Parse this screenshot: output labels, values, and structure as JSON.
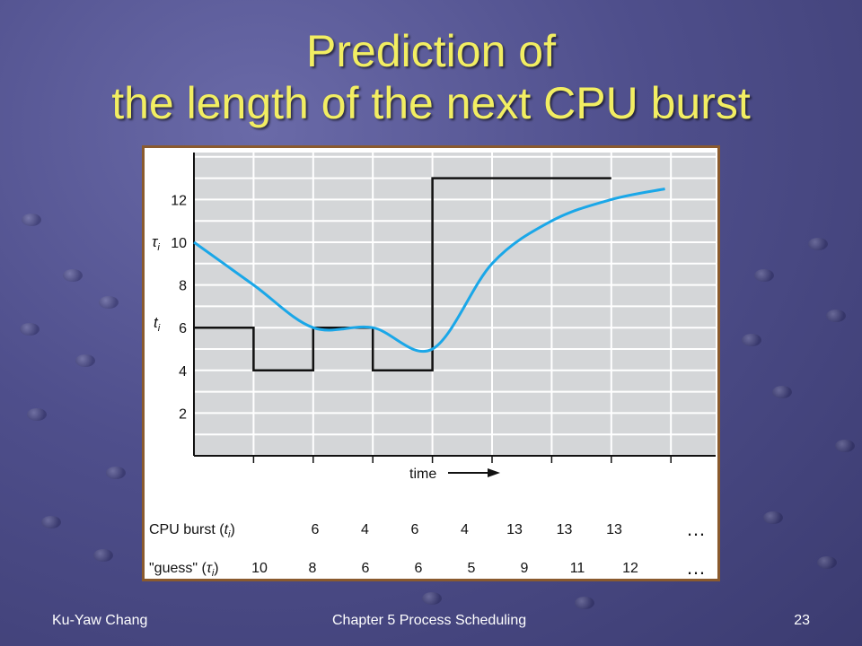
{
  "slide": {
    "title_line1": "Prediction of",
    "title_line2": "the length of the next CPU burst",
    "footer_left": "Ku-Yaw Chang",
    "footer_center": "Chapter 5 Process Scheduling",
    "footer_right": "23"
  },
  "colors": {
    "title": "#f2ee62",
    "plot_bg": "#d4d6d8",
    "burst_line": "#111111",
    "guess_line": "#1aa7e8",
    "frame": "#8a5a2e"
  },
  "chart_data": {
    "type": "line",
    "xlabel": "time",
    "ylim": [
      0,
      14
    ],
    "yticks": [
      2,
      4,
      6,
      8,
      10,
      12
    ],
    "grid": true,
    "y_symbols": {
      "tau": "τ",
      "tau_sub": "i",
      "t": "t",
      "t_sub": "i"
    },
    "series": [
      {
        "name": "CPU burst (ti)",
        "type": "step",
        "values": [
          6,
          4,
          6,
          4,
          13,
          13,
          13
        ]
      },
      {
        "name": "\"guess\" (τi)",
        "type": "smooth",
        "values": [
          10,
          8,
          6,
          6,
          5,
          9,
          11,
          12
        ]
      }
    ],
    "table": {
      "rows": [
        {
          "label_pre": "CPU burst (",
          "sym": "t",
          "sub": "i",
          "label_post": ")",
          "values": [
            "6",
            "4",
            "6",
            "4",
            "13",
            "13",
            "13"
          ],
          "ellipsis": "…"
        },
        {
          "label_pre": "\"guess\" (",
          "sym": "τ",
          "sub": "i",
          "label_post": ")",
          "values": [
            "10",
            "8",
            "6",
            "6",
            "5",
            "9",
            "11",
            "12"
          ],
          "ellipsis": "…"
        }
      ]
    }
  }
}
